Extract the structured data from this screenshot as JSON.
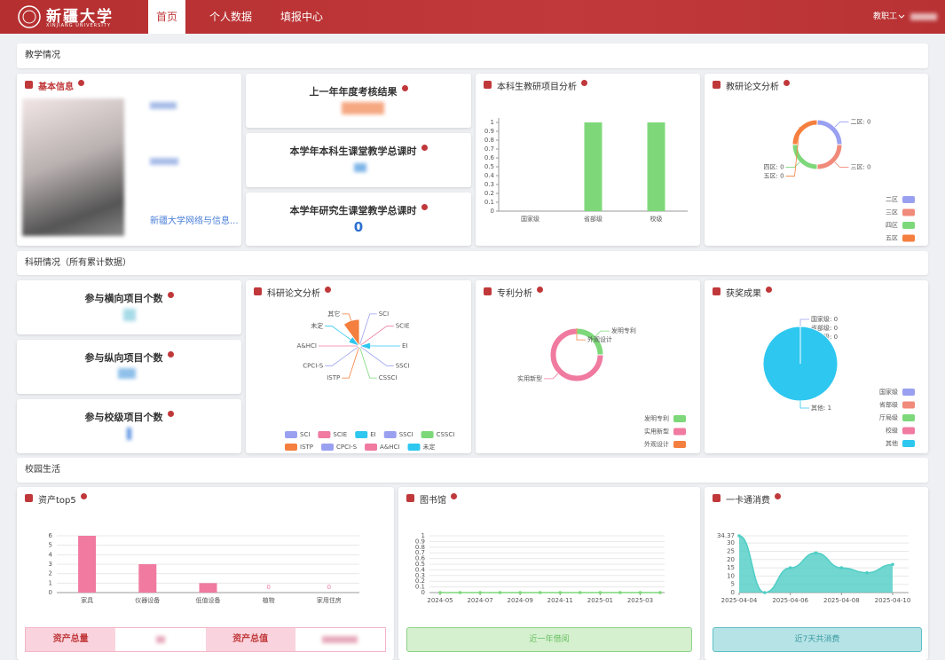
{
  "header": {
    "logo_cn": "新疆大学",
    "logo_en": "XINJIANG UNIVERSITY",
    "nav": [
      "首页",
      "个人数据",
      "填报中心"
    ],
    "user": "教职工"
  },
  "sections": [
    "教学情况",
    "科研情况（所有累计数据）",
    "校园生活"
  ],
  "basic_info": {
    "title": "基本信息",
    "department": "新疆大学网络与信息..."
  },
  "stat_cards": [
    {
      "title": "上一年年度考核结果"
    },
    {
      "title": "本学年本科生课堂教学总课时"
    },
    {
      "title": "本学年研究生课堂教学总课时",
      "value": 0
    },
    {
      "title": "参与横向项目个数"
    },
    {
      "title": "参与纵向项目个数"
    },
    {
      "title": "参与校级项目个数"
    }
  ],
  "footers": {
    "asset": [
      "资产总量",
      "资产总值"
    ],
    "library": "近一年借阅",
    "card": "近7天共消费"
  },
  "chart_data": [
    {
      "type": "bar",
      "title": "本科生教研项目分析",
      "categories": [
        "国家级",
        "省部级",
        "校级"
      ],
      "values": [
        0,
        1,
        1
      ],
      "color": "#7ed87a",
      "ylim": [
        0,
        1
      ],
      "yticks": [
        0,
        0.1,
        0.2,
        0.3,
        0.4,
        0.5,
        0.6,
        0.7,
        0.8,
        0.9,
        1
      ],
      "grid": false
    },
    {
      "type": "doughnut",
      "title": "教研论文分析",
      "categories": [
        "二区",
        "三区",
        "四区",
        "五区"
      ],
      "values": [
        0,
        0,
        0,
        0
      ],
      "value_labels": [
        "二区: 0",
        "三区: 0",
        "四区: 0",
        "五区: 0"
      ],
      "colors": [
        "#9aa0f0",
        "#f08a7a",
        "#7dd87a",
        "#f57f3f"
      ],
      "legend": "bottom-right"
    },
    {
      "type": "rose",
      "title": "科研论文分析",
      "categories": [
        "SCI",
        "SCIE",
        "EI",
        "SSCI",
        "CSSCI",
        "ISTP",
        "CPCI-S",
        "A&HCI",
        "未定",
        "其它"
      ],
      "values": [
        0,
        0,
        1,
        0,
        0,
        0,
        0,
        0,
        1,
        3
      ],
      "colors": [
        "#9aa0f0",
        "#f07aa0",
        "#2ec7f0",
        "#9aa0f0",
        "#7dd87a",
        "#f57f3f",
        "#9aa0f0",
        "#f07aa0",
        "#2ec7f0",
        "#f57f3f"
      ],
      "legend": "bottom"
    },
    {
      "type": "doughnut",
      "title": "专利分析",
      "categories": [
        "发明专利",
        "实用新型",
        "外观设计"
      ],
      "values": [
        1,
        3,
        0
      ],
      "colors": [
        "#7ed87a",
        "#f07aa0",
        "#f57f3f"
      ],
      "legend": "bottom-right"
    },
    {
      "type": "pie",
      "title": "获奖成果",
      "categories": [
        "国家级",
        "省部级",
        "厅局级",
        "校级",
        "其他"
      ],
      "values": [
        0,
        0,
        0,
        0,
        1
      ],
      "value_labels": [
        "国家级: 0",
        "省部级: 0",
        "厅局级: 0",
        "校级: 0",
        "其他: 1"
      ],
      "colors": [
        "#9aa0f0",
        "#f08a7a",
        "#7dd87a",
        "#f07aa0",
        "#2ec7f0"
      ],
      "legend": "bottom-right"
    },
    {
      "type": "bar",
      "title": "资产top5",
      "categories": [
        "家具",
        "仪器设备",
        "低值设备",
        "植物",
        "家用住房"
      ],
      "values": [
        6,
        3,
        1,
        0,
        0
      ],
      "color": "#f07aa0",
      "ylim": [
        0,
        6
      ],
      "yticks": [
        0,
        1,
        2,
        3,
        4,
        5,
        6
      ],
      "grid": true
    },
    {
      "type": "line",
      "title": "图书馆",
      "x": [
        "2024-05",
        null,
        "2024-07",
        null,
        "2024-09",
        null,
        "2024-11",
        null,
        "2025-01",
        null,
        "2025-03",
        null
      ],
      "values": [
        0,
        0,
        0,
        0,
        0,
        0,
        0,
        0,
        0,
        0,
        0,
        0
      ],
      "color": "#7ed87a",
      "ylim": [
        0,
        1
      ],
      "yticks": [
        0,
        0.1,
        0.2,
        0.3,
        0.4,
        0.5,
        0.6,
        0.7,
        0.8,
        0.9,
        1
      ],
      "grid": true
    },
    {
      "type": "area",
      "title": "一卡通消费",
      "x": [
        "2025-04-04",
        null,
        "2025-04-06",
        null,
        "2025-04-08",
        null,
        "2025-04-10"
      ],
      "values": [
        34.37,
        0,
        15,
        24,
        15,
        12,
        17
      ],
      "color": "#4ecdc4",
      "ylim": [
        0,
        34.37
      ],
      "yticks": [
        0,
        5,
        10,
        15,
        20,
        25,
        30,
        34.37
      ],
      "grid": true
    }
  ]
}
